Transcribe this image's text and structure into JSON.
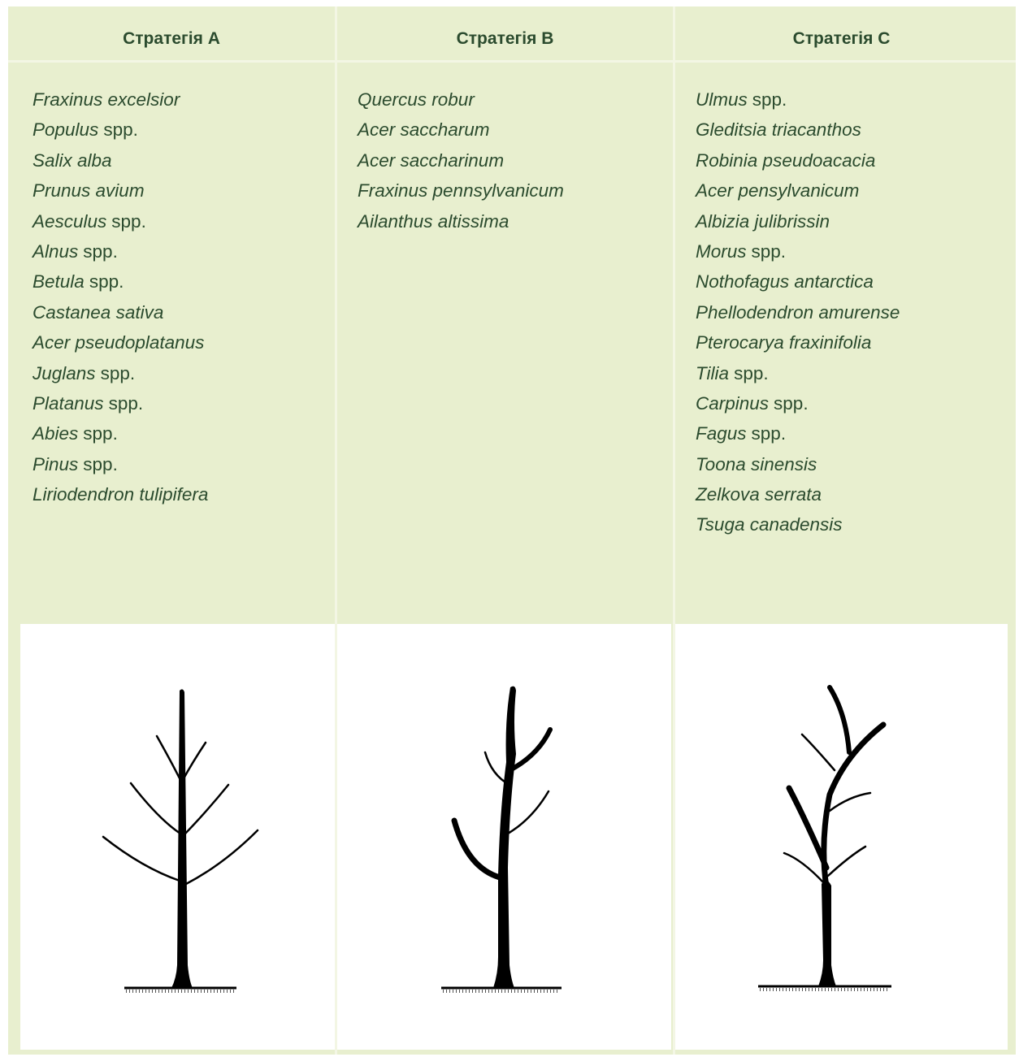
{
  "columns": [
    {
      "header": "Стратегія A",
      "items": [
        {
          "name": "Fraxinus excelsior"
        },
        {
          "name": "Populus",
          "suffix": "spp."
        },
        {
          "name": "Salix alba"
        },
        {
          "name": "Prunus avium"
        },
        {
          "name": "Aesculus",
          "suffix": "spp."
        },
        {
          "name": "Alnus",
          "suffix": "spp."
        },
        {
          "name": "Betula",
          "suffix": "spp."
        },
        {
          "name": "Castanea sativa"
        },
        {
          "name": "Acer pseudoplatanus"
        },
        {
          "name": "Juglans",
          "suffix": "spp."
        },
        {
          "name": "Platanus",
          "suffix": "spp."
        },
        {
          "name": "Abies",
          "suffix": "spp."
        },
        {
          "name": "Pinus",
          "suffix": "spp."
        },
        {
          "name": "Liriodendron tulipifera"
        }
      ]
    },
    {
      "header": "Стратегія B",
      "items": [
        {
          "name": "Quercus robur"
        },
        {
          "name": "Acer saccharum"
        },
        {
          "name": "Acer saccharinum"
        },
        {
          "name": "Fraxinus pennsylvanicum"
        },
        {
          "name": "Ailanthus altissima"
        }
      ]
    },
    {
      "header": "Стратегія C",
      "items": [
        {
          "name": "Ulmus",
          "suffix": "spp."
        },
        {
          "name": "Gleditsia triacanthos"
        },
        {
          "name": "Robinia pseudoacacia"
        },
        {
          "name": "Acer pensylvanicum"
        },
        {
          "name": "Albizia julibrissin"
        },
        {
          "name": "Morus",
          "suffix": "spp."
        },
        {
          "name": "Nothofagus antarctica"
        },
        {
          "name": "Phellodendron amurense"
        },
        {
          "name": "Pterocarya fraxinifolia"
        },
        {
          "name": "Tilia",
          "suffix": "spp."
        },
        {
          "name": "Carpinus",
          "suffix": "spp."
        },
        {
          "name": "Fagus",
          "suffix": "spp."
        },
        {
          "name": "Toona sinensis"
        },
        {
          "name": "Zelkova serrata"
        },
        {
          "name": "Tsuga canadensis"
        }
      ]
    }
  ]
}
